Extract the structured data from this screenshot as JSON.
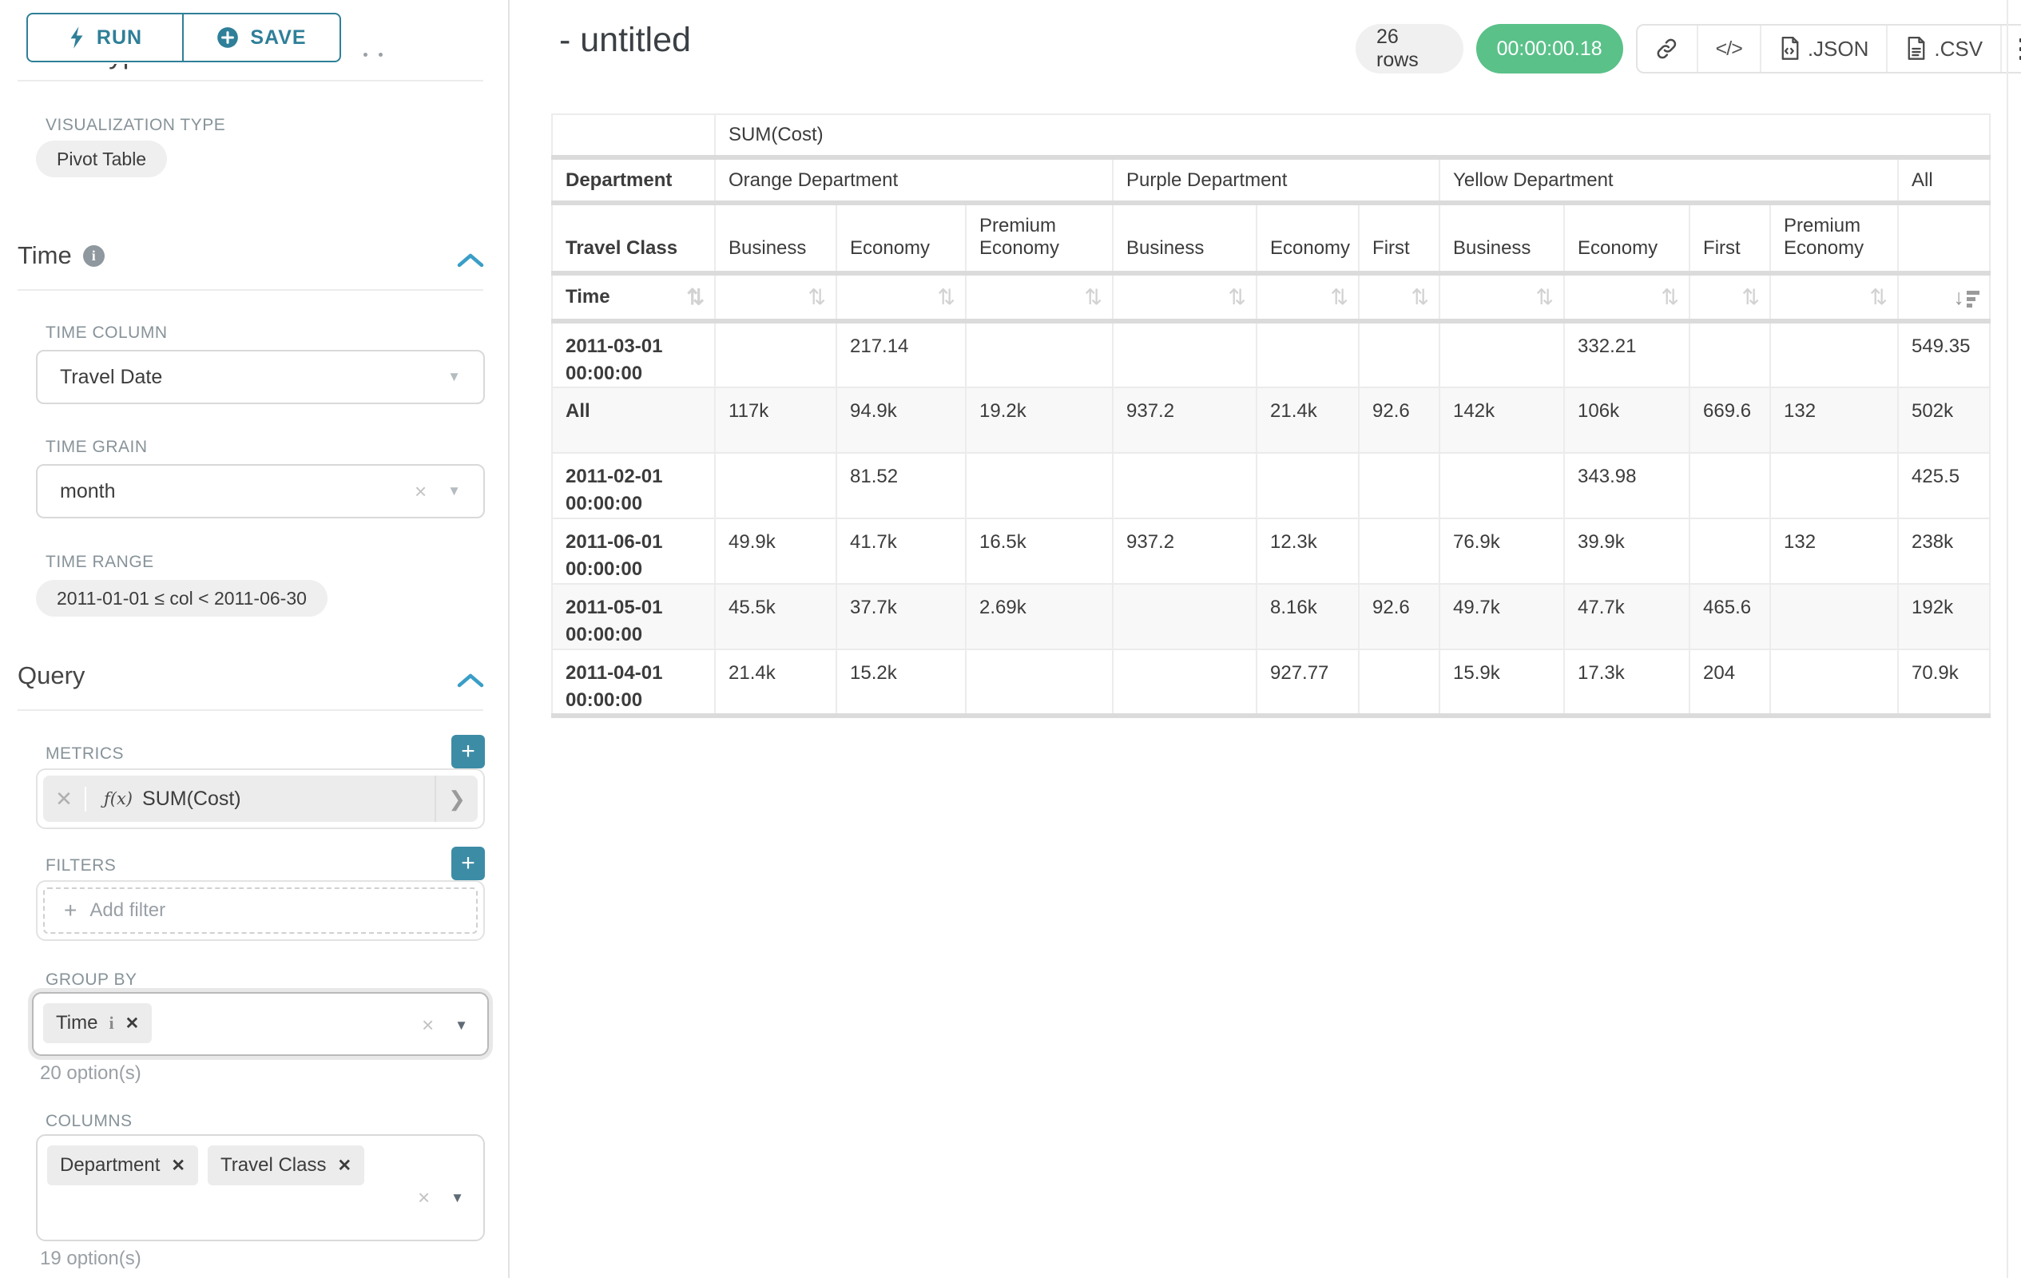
{
  "sidebar": {
    "run_button": "RUN",
    "save_button": "SAVE",
    "clipped_heading": "Chart Type",
    "visualization_type": {
      "label": "VISUALIZATION TYPE",
      "value": "Pivot Table"
    },
    "time_section": {
      "title": "Time",
      "time_column": {
        "label": "TIME COLUMN",
        "value": "Travel Date"
      },
      "time_grain": {
        "label": "TIME GRAIN",
        "value": "month"
      },
      "time_range": {
        "label": "TIME RANGE",
        "value": "2011-01-01 ≤ col < 2011-06-30"
      }
    },
    "query_section": {
      "title": "Query",
      "metrics": {
        "label": "METRICS",
        "fx_prefix": "ƒ(x)",
        "value": "SUM(Cost)"
      },
      "filters": {
        "label": "FILTERS",
        "placeholder": "Add filter"
      },
      "group_by": {
        "label": "GROUP BY",
        "tags": [
          "Time"
        ],
        "options_hint": "20 option(s)"
      },
      "columns": {
        "label": "COLUMNS",
        "tags": [
          "Department",
          "Travel Class"
        ],
        "options_hint": "19 option(s)"
      }
    }
  },
  "header": {
    "title": "- untitled",
    "rows_badge": "26 rows",
    "timer": "00:00:00.18",
    "export_json_label": ".JSON",
    "export_csv_label": ".CSV"
  },
  "chart_data": {
    "type": "table",
    "metric_header": "SUM(Cost)",
    "dimension_labels": {
      "columns_outer": "Department",
      "columns_inner": "Travel Class",
      "rows": "Time"
    },
    "column_groups": [
      {
        "name": "Orange Department",
        "classes": [
          "Business",
          "Economy",
          "Premium Economy"
        ]
      },
      {
        "name": "Purple Department",
        "classes": [
          "Business",
          "Economy",
          "First"
        ]
      },
      {
        "name": "Yellow Department",
        "classes": [
          "Business",
          "Economy",
          "First",
          "Premium Economy"
        ]
      },
      {
        "name": "All",
        "classes": [
          ""
        ]
      }
    ],
    "rows": [
      {
        "label": "2011-03-01 00:00:00",
        "values": [
          "",
          "217.14",
          "",
          "",
          "",
          "",
          "",
          "332.21",
          "",
          "",
          "549.35"
        ]
      },
      {
        "label": "All",
        "values": [
          "117k",
          "94.9k",
          "19.2k",
          "937.2",
          "21.4k",
          "92.6",
          "142k",
          "106k",
          "669.6",
          "132",
          "502k"
        ]
      },
      {
        "label": "2011-02-01 00:00:00",
        "values": [
          "",
          "81.52",
          "",
          "",
          "",
          "",
          "",
          "343.98",
          "",
          "",
          "425.5"
        ]
      },
      {
        "label": "2011-06-01 00:00:00",
        "values": [
          "49.9k",
          "41.7k",
          "16.5k",
          "937.2",
          "12.3k",
          "",
          "76.9k",
          "39.9k",
          "",
          "132",
          "238k"
        ]
      },
      {
        "label": "2011-05-01 00:00:00",
        "values": [
          "45.5k",
          "37.7k",
          "2.69k",
          "",
          "8.16k",
          "92.6",
          "49.7k",
          "47.7k",
          "465.6",
          "",
          "192k"
        ]
      },
      {
        "label": "2011-04-01 00:00:00",
        "values": [
          "21.4k",
          "15.2k",
          "",
          "",
          "927.77",
          "",
          "15.9k",
          "17.3k",
          "204",
          "",
          "70.9k"
        ]
      }
    ],
    "alt_row_indexes": [
      1,
      4
    ],
    "colors": {
      "accent_teal": "#2f7f98",
      "plus_teal": "#3d8ca6",
      "success_green": "#5ac189",
      "chevron_blue": "#3a9ec7"
    }
  }
}
